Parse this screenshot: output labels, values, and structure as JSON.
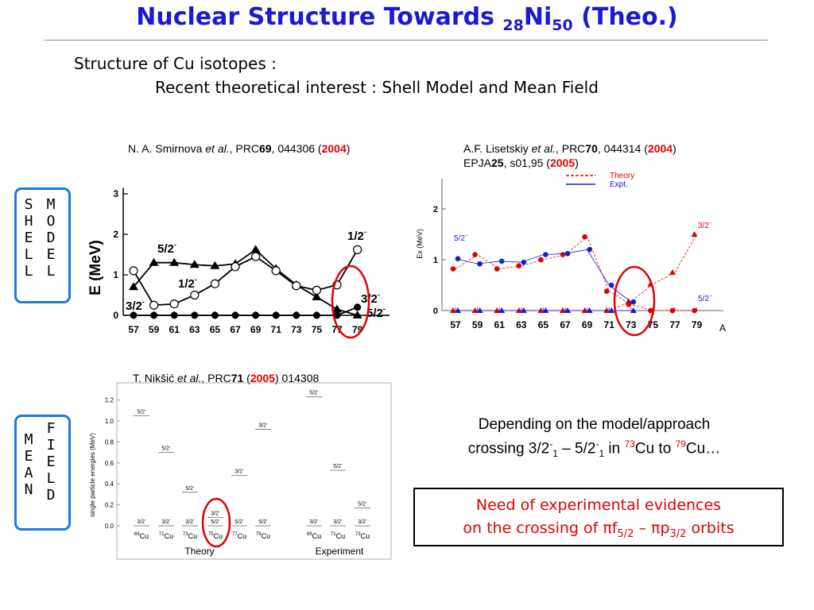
{
  "title": {
    "main": "Nuclear Structure Towards ",
    "sub1": "28",
    "elem": "Ni",
    "sub2": "50",
    "tail": " (Theo.)"
  },
  "intro": {
    "line1": "Structure of Cu isotopes :",
    "line2": "Recent theoretical interest : Shell Model and Mean Field"
  },
  "citations": {
    "smirnova": {
      "author": "N. A. Smirnova ",
      "etal": "et al.",
      "journal": ", PRC",
      "vol": "69",
      "pages": ", 044306 (",
      "year": "2004",
      "close": ")"
    },
    "lisetskiy": {
      "author": "A.F. Lisetskiy ",
      "etal": "et al.",
      "journal": ", PRC",
      "vol": "70",
      "pages": ", 044314 (",
      "year": "2004",
      "close": ")",
      "line2_journal": "EPJA",
      "line2_vol": "25",
      "line2_pages": ", s01,95 (",
      "line2_year": "2005",
      "line2_close": ")"
    },
    "niksic": {
      "author": "T. Nikšić ",
      "etal": "et al.",
      "journal": ", PRC",
      "vol": "71",
      "open": " (",
      "year": "2005",
      "pages": ") 014308"
    }
  },
  "side_labels": {
    "shell": [
      "S",
      "H",
      "E",
      "L",
      "L"
    ],
    "model": [
      "M",
      "O",
      "D",
      "E",
      "L"
    ],
    "mean": [
      "M",
      "E",
      "A",
      "N"
    ],
    "field": [
      "F",
      "I",
      "E",
      "L",
      "D"
    ]
  },
  "chart_data": [
    {
      "type": "line",
      "ylabel": "E (MeV)",
      "x": [
        57,
        59,
        61,
        63,
        65,
        67,
        69,
        71,
        73,
        75,
        77,
        79
      ],
      "ylim": [
        0,
        3
      ],
      "yticks": [
        0,
        1,
        2,
        3
      ],
      "series": [
        {
          "values": [
            0,
            0,
            0,
            0,
            0,
            0,
            0,
            0,
            0,
            0,
            0,
            0.2
          ]
        },
        {
          "values": [
            0.7,
            1.3,
            1.3,
            1.25,
            1.22,
            1.27,
            1.62,
            1.15,
            0.75,
            0.45,
            0.15,
            0
          ]
        },
        {
          "values": [
            1.1,
            0.25,
            0.28,
            0.5,
            0.78,
            1.2,
            1.45,
            1.1,
            0.73,
            0.62,
            0.75,
            1.62
          ]
        }
      ],
      "annotations": [
        {
          "text": "5/2",
          "sup": "-"
        },
        {
          "text": "1/2",
          "sup": "-"
        },
        {
          "text": "3/2",
          "sup": "-"
        },
        {
          "text": "1/2",
          "sup": "-"
        },
        {
          "text": "3/2",
          "sup": "-"
        },
        {
          "text": "5/2",
          "sup": "-"
        }
      ]
    },
    {
      "type": "scatter",
      "ylabel": "Ex (MeV)",
      "xlabel": "A",
      "x": [
        57,
        59,
        61,
        63,
        65,
        67,
        69,
        71,
        73,
        75,
        77,
        79
      ],
      "ylim": [
        0,
        2.6
      ],
      "yticks": [
        0,
        1,
        2
      ],
      "legend": [
        "Theory",
        "Expt."
      ],
      "series": [
        {
          "name": "Theory",
          "state": "5/2-",
          "values": [
            0.82,
            1.1,
            0.82,
            0.88,
            1.0,
            1.1,
            1.45,
            0.38,
            0.12,
            0,
            0,
            0
          ]
        },
        {
          "name": "Theory",
          "state": "3/2-",
          "values": [
            0,
            0,
            0,
            0,
            0,
            0,
            0,
            0,
            0.18,
            0.52,
            0.75,
            1.5
          ]
        },
        {
          "name": "Expt.",
          "state": "5/2-",
          "values": [
            1.02,
            0.92,
            0.97,
            0.95,
            1.1,
            1.12,
            1.2,
            0.5,
            0.17,
            null,
            null,
            null
          ]
        },
        {
          "name": "Expt.",
          "state": "3/2-",
          "values": [
            0,
            0,
            0,
            0,
            0,
            0,
            0,
            0,
            0,
            null,
            null,
            null
          ]
        }
      ],
      "annotations": [
        {
          "text": "5/2",
          "sup": "−"
        },
        {
          "text": "3/2",
          "sup": "−"
        },
        {
          "text": "5/2",
          "sup": "−"
        }
      ]
    },
    {
      "type": "bar",
      "ylabel": "single particle energies (MeV)",
      "ylim": [
        0,
        1.3
      ],
      "yticks": [
        "0.0",
        "0.2",
        "0.4",
        "0.6",
        "0.8",
        "1.0",
        "1.2"
      ],
      "groups": [
        "Theory",
        "Experiment"
      ],
      "isotopes": [
        {
          "group": "Theory",
          "label": "69",
          "elem": "Cu",
          "levels": [
            {
              "state": "3/2",
              "E": 0
            },
            {
              "state": "5/2",
              "E": 1.05
            }
          ]
        },
        {
          "group": "Theory",
          "label": "71",
          "elem": "Cu",
          "levels": [
            {
              "state": "3/2",
              "E": 0
            },
            {
              "state": "5/2",
              "E": 0.7
            }
          ]
        },
        {
          "group": "Theory",
          "label": "73",
          "elem": "Cu",
          "levels": [
            {
              "state": "3/2",
              "E": 0
            },
            {
              "state": "5/2",
              "E": 0.32
            }
          ]
        },
        {
          "group": "Theory",
          "label": "75",
          "elem": "Cu",
          "levels": [
            {
              "state": "5/2",
              "E": 0
            },
            {
              "state": "3/2",
              "E": 0.08
            }
          ]
        },
        {
          "group": "Theory",
          "label": "77",
          "elem": "Cu",
          "levels": [
            {
              "state": "5/2",
              "E": 0
            },
            {
              "state": "3/2",
              "E": 0.48
            }
          ]
        },
        {
          "group": "Theory",
          "label": "79",
          "elem": "Cu",
          "levels": [
            {
              "state": "5/2",
              "E": 0
            },
            {
              "state": "3/2",
              "E": 0.92
            }
          ]
        },
        {
          "group": "Experiment",
          "label": "69",
          "elem": "Cu",
          "levels": [
            {
              "state": "3/2",
              "E": 0
            },
            {
              "state": "5/2",
              "E": 1.23
            }
          ]
        },
        {
          "group": "Experiment",
          "label": "71",
          "elem": "Cu",
          "levels": [
            {
              "state": "3/2",
              "E": 0
            },
            {
              "state": "5/2",
              "E": 0.53
            }
          ]
        },
        {
          "group": "Experiment",
          "label": "73",
          "elem": "Cu",
          "levels": [
            {
              "state": "3/2",
              "E": 0
            },
            {
              "state": "5/2",
              "E": 0.17
            }
          ]
        }
      ],
      "sup": "-"
    }
  ],
  "conclusion": {
    "line1": "Depending on the model/approach",
    "line2_a": "crossing 3/2",
    "line2_sup1": "-",
    "line2_sub1": "1",
    "line2_b": " – 5/2",
    "line2_sup2": "-",
    "line2_sub2": "1",
    "line2_c": " in ",
    "line2_mass1": "73",
    "line2_d": "Cu to ",
    "line2_mass2": "79",
    "line2_e": "Cu…"
  },
  "need": {
    "line1": "Need of experimental evidences",
    "line2_a": "on the crossing of ",
    "pi": "π",
    "f": "f",
    "f_sub": "5/2",
    "dash": " – ",
    "p": "p",
    "p_sub": "3/2",
    "tail": " orbits"
  },
  "colors": {
    "title": "#1a1ad6",
    "box": "#1a7be0",
    "highlight": "#e00000",
    "theory": "#e00000",
    "expt": "#1a1ad6"
  }
}
